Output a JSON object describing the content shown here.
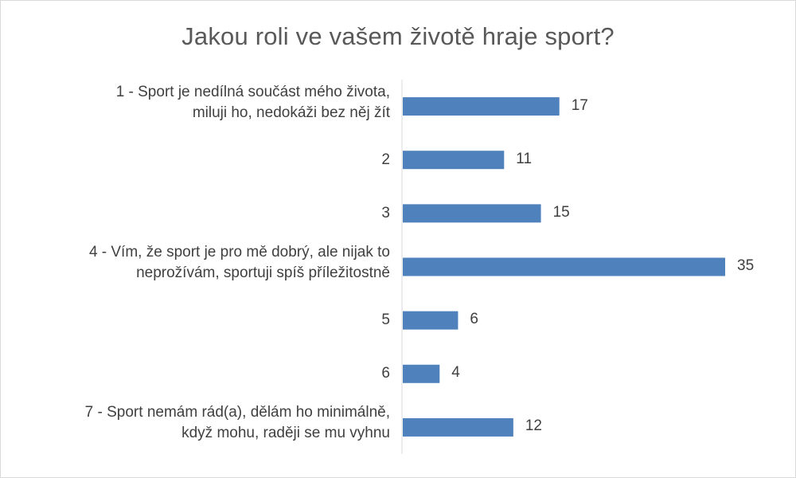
{
  "chart_data": {
    "type": "bar",
    "orientation": "horizontal",
    "title": "Jakou roli ve vašem životě hraje sport?",
    "categories": [
      "1 - Sport je nedílná součást mého života, miluji ho, nedokáži bez něj žít",
      "2",
      "3",
      "4 - Vím, že sport je pro mě dobrý, ale nijak to neprožívám, sportuji spíš příležitostně",
      "5",
      "6",
      "7 - Sport nemám rád(a), dělám ho minimálně, když mohu, raději se mu vyhnu"
    ],
    "category_lines": [
      [
        "1 - Sport je nedílná součást mého života,",
        "miluji ho, nedokáži bez něj žít"
      ],
      [
        "2"
      ],
      [
        "3"
      ],
      [
        "4 - Vím, že sport je pro mě dobrý, ale nijak to",
        "neprožívám, sportuji spíš příležitostně"
      ],
      [
        "5"
      ],
      [
        "6"
      ],
      [
        "7 - Sport nemám rád(a), dělám ho minimálně,",
        "když mohu, raději se mu vyhnu"
      ]
    ],
    "values": [
      17,
      11,
      15,
      35,
      6,
      4,
      12
    ],
    "xlim": [
      0,
      35
    ],
    "data_labels": true,
    "grid": false,
    "legend": "none",
    "bar_color": "#4f81bd"
  }
}
